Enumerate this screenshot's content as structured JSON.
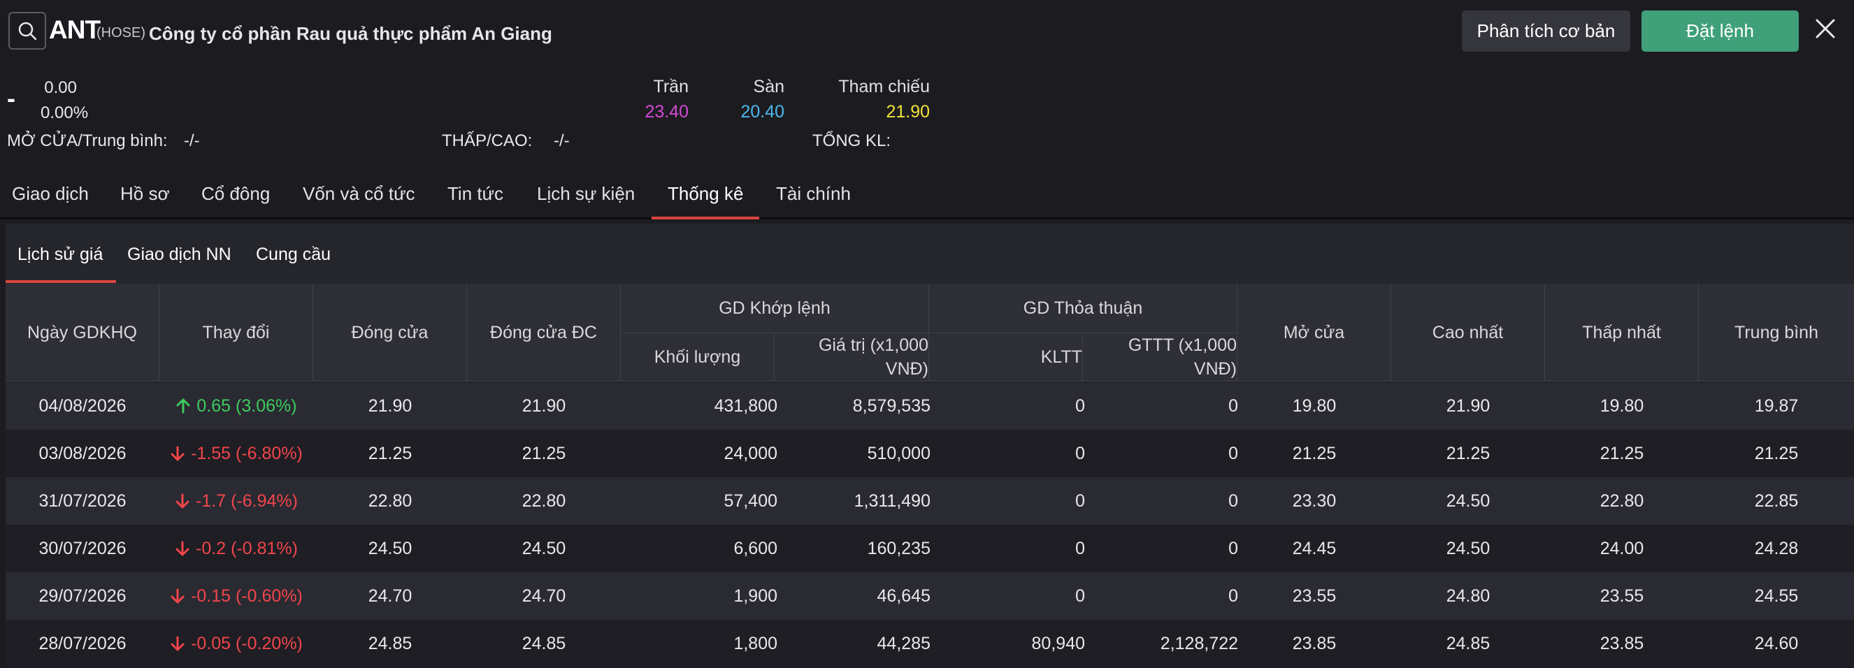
{
  "header": {
    "ticker": "ANT",
    "exchange": "(HOSE)",
    "company": "Công ty cổ phần Rau quả thực phẩm An Giang",
    "btn_analysis": "Phân tích cơ bản",
    "btn_order": "Đặt lệnh"
  },
  "quote": {
    "dash": "-",
    "change": "0.00",
    "change_pct": "0.00%",
    "ceiling_label": "Trần",
    "ceiling": "23.40",
    "floor_label": "Sàn",
    "floor": "20.40",
    "ref_label": "Tham chiếu",
    "ref": "21.90",
    "open_label": "MỞ CỬA/Trung bình:",
    "open_value": "-/-",
    "lowhigh_label": "THẤP/CAO:",
    "lowhigh_value": "-/-",
    "volume_label": "TỔNG KL:"
  },
  "tabs": [
    "Giao dịch",
    "Hồ sơ",
    "Cổ đông",
    "Vốn và cổ tức",
    "Tin tức",
    "Lịch sự kiện",
    "Thống kê",
    "Tài chính"
  ],
  "subtabs": [
    "Lịch sử giá",
    "Giao dịch NN",
    "Cung cầu"
  ],
  "table": {
    "headers": {
      "date": "Ngày GDKHQ",
      "change": "Thay đổi",
      "close": "Đóng cửa",
      "close_adj": "Đóng cửa ĐC",
      "matched": "GD Khớp lệnh",
      "volume": "Khối lượng",
      "value": "Giá trị (x1,000 VNĐ)",
      "deal": "GD Thỏa thuận",
      "kltt": "KLTT",
      "gttt": "GTTT (x1,000 VNĐ)",
      "open": "Mở cửa",
      "high": "Cao nhất",
      "low": "Thấp nhất",
      "avg": "Trung bình"
    },
    "rows": [
      {
        "date": "04/08/2026",
        "dir": "up",
        "change": "0.65 (3.06%)",
        "close": "21.90",
        "close_adj": "21.90",
        "volume": "431,800",
        "value": "8,579,535",
        "kltt": "0",
        "gttt": "0",
        "open": "19.80",
        "high": "21.90",
        "low": "19.80",
        "avg": "19.87"
      },
      {
        "date": "03/08/2026",
        "dir": "down",
        "change": "-1.55 (-6.80%)",
        "close": "21.25",
        "close_adj": "21.25",
        "volume": "24,000",
        "value": "510,000",
        "kltt": "0",
        "gttt": "0",
        "open": "21.25",
        "high": "21.25",
        "low": "21.25",
        "avg": "21.25"
      },
      {
        "date": "31/07/2026",
        "dir": "down",
        "change": "-1.7 (-6.94%)",
        "close": "22.80",
        "close_adj": "22.80",
        "volume": "57,400",
        "value": "1,311,490",
        "kltt": "0",
        "gttt": "0",
        "open": "23.30",
        "high": "24.50",
        "low": "22.80",
        "avg": "22.85"
      },
      {
        "date": "30/07/2026",
        "dir": "down",
        "change": "-0.2 (-0.81%)",
        "close": "24.50",
        "close_adj": "24.50",
        "volume": "6,600",
        "value": "160,235",
        "kltt": "0",
        "gttt": "0",
        "open": "24.45",
        "high": "24.50",
        "low": "24.00",
        "avg": "24.28"
      },
      {
        "date": "29/07/2026",
        "dir": "down",
        "change": "-0.15 (-0.60%)",
        "close": "24.70",
        "close_adj": "24.70",
        "volume": "1,900",
        "value": "46,645",
        "kltt": "0",
        "gttt": "0",
        "open": "23.55",
        "high": "24.80",
        "low": "23.55",
        "avg": "24.55"
      },
      {
        "date": "28/07/2026",
        "dir": "down",
        "change": "-0.05 (-0.20%)",
        "close": "24.85",
        "close_adj": "24.85",
        "volume": "1,800",
        "value": "44,285",
        "kltt": "80,940",
        "gttt": "2,128,722",
        "open": "23.85",
        "high": "24.85",
        "low": "23.85",
        "avg": "24.60"
      }
    ]
  },
  "colors": {
    "up": "#3ecb5e",
    "down": "#f0454a",
    "ceiling": "#d54ad6",
    "floor": "#4bb8ee",
    "ref": "#f1e33a",
    "accent": "#d9463f",
    "order_button": "#3fa07a"
  }
}
